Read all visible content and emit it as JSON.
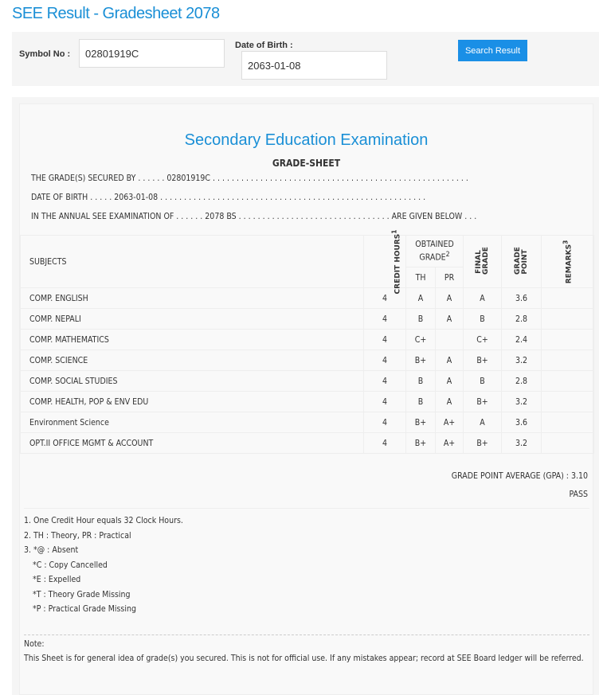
{
  "page_title": "SEE Result - Gradesheet 2078",
  "form": {
    "symbol_label": "Symbol No :",
    "symbol_value": "02801919C",
    "dob_label": "Date of Birth :",
    "dob_value": "2063-01-08",
    "search_button": "Search Result"
  },
  "sheet": {
    "exam_title": "Secondary Education Examination",
    "sheet_title": "GRADE-SHEET",
    "line1": "THE GRADE(S) SECURED BY . . . . . . 02801919C . . . . . . . . . . . . . . . . . . . . . . . . . . . . . . . . . . . . . . . . . . . . . . . . . . . . . .",
    "line2": "DATE OF BIRTH . . . . . 2063-01-08 . . . . . . . . . . . . . . . . . . . . . . . . . . . . . . . . . . . . . . . . . . . . . . . . . . . . . . . .",
    "line3": "IN THE ANNUAL SEE EXAMINATION OF . . . . . . 2078 BS . . . . . . . . . . . . . . . . . . . . . . . . . . . . . . . . ARE GIVEN BELOW . . .",
    "headers": {
      "subjects": "SUBJECTS",
      "credit": "CREDIT HOURS",
      "credit_sup": "1",
      "obtained": "OBTAINED GRADE",
      "obtained_sup": "2",
      "th": "TH",
      "pr": "PR",
      "final": "FINAL GRADE",
      "gp": "GRADE POINT",
      "remarks": "REMARKS",
      "remarks_sup": "3"
    },
    "rows": [
      {
        "subject": "COMP. ENGLISH",
        "credit": "4",
        "th": "A",
        "pr": "A",
        "final": "A",
        "gp": "3.6",
        "remarks": ""
      },
      {
        "subject": "COMP. NEPALI",
        "credit": "4",
        "th": "B",
        "pr": "A",
        "final": "B",
        "gp": "2.8",
        "remarks": ""
      },
      {
        "subject": "COMP. MATHEMATICS",
        "credit": "4",
        "th": "C+",
        "pr": "",
        "final": "C+",
        "gp": "2.4",
        "remarks": ""
      },
      {
        "subject": "COMP. SCIENCE",
        "credit": "4",
        "th": "B+",
        "pr": "A",
        "final": "B+",
        "gp": "3.2",
        "remarks": ""
      },
      {
        "subject": "COMP. SOCIAL STUDIES",
        "credit": "4",
        "th": "B",
        "pr": "A",
        "final": "B",
        "gp": "2.8",
        "remarks": ""
      },
      {
        "subject": "COMP. HEALTH, POP & ENV EDU",
        "credit": "4",
        "th": "B",
        "pr": "A",
        "final": "B+",
        "gp": "3.2",
        "remarks": ""
      },
      {
        "subject": "Environment Science",
        "credit": "4",
        "th": "B+",
        "pr": "A+",
        "final": "A",
        "gp": "3.6",
        "remarks": ""
      },
      {
        "subject": "OPT.II OFFICE MGMT & ACCOUNT",
        "credit": "4",
        "th": "B+",
        "pr": "A+",
        "final": "B+",
        "gp": "3.2",
        "remarks": ""
      }
    ],
    "gpa": "GRADE POINT AVERAGE (GPA) : 3.10",
    "result": "PASS",
    "footnotes": [
      "1. One Credit Hour equals 32 Clock Hours.",
      "2. TH : Theory, PR : Practical",
      "3. *@ : Absent",
      "*C : Copy Cancelled",
      "*E : Expelled",
      "*T : Theory Grade Missing",
      "*P : Practical Grade Missing"
    ],
    "note_label": "Note:",
    "note_text": "This Sheet is for general idea of grade(s) you secured. This is not for official use. If any mistakes appear; record at SEE Board ledger will be referred."
  },
  "colors": {
    "accent": "#1a8fd6",
    "button": "#1a8fe6",
    "panel": "#f5f5f5"
  }
}
